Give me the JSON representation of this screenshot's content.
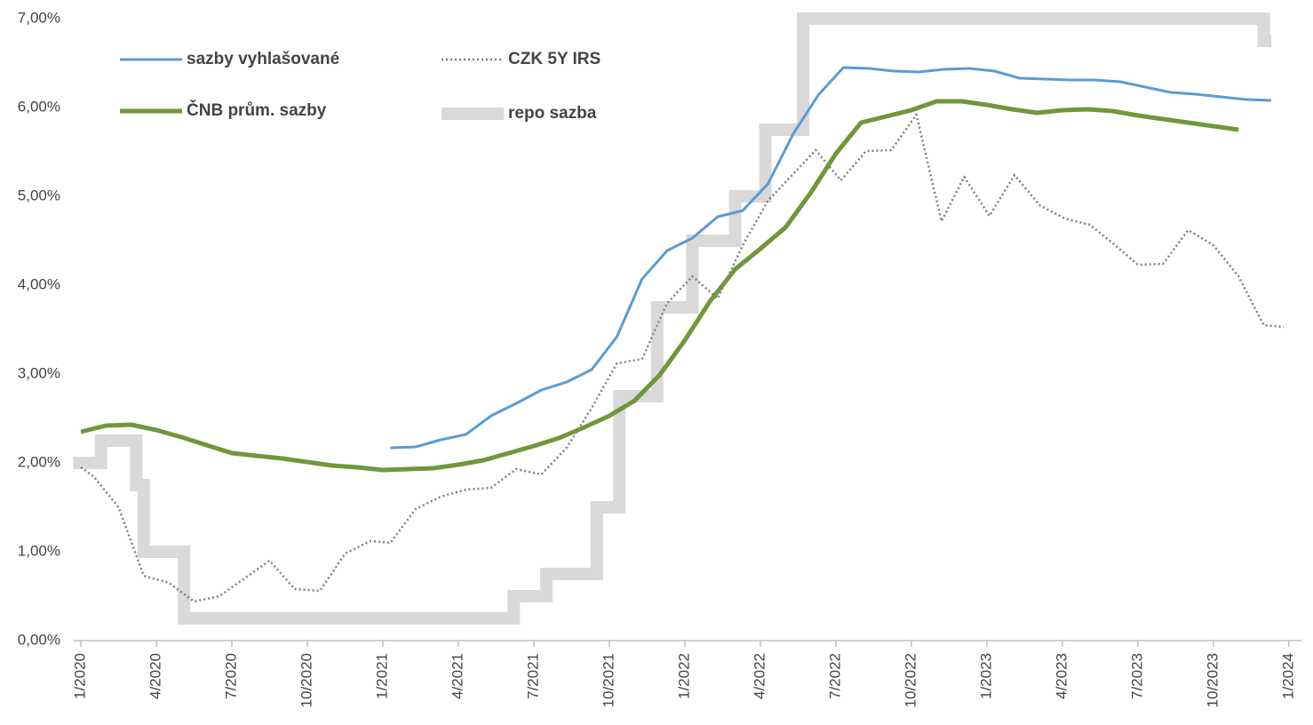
{
  "chart_data": {
    "type": "line",
    "xlim": [
      -0.3,
      48.5
    ],
    "ylim": [
      0,
      7
    ],
    "yticks": [
      {
        "value": 0,
        "label": "0,00%"
      },
      {
        "value": 1,
        "label": "1,00%"
      },
      {
        "value": 2,
        "label": "2,00%"
      },
      {
        "value": 3,
        "label": "3,00%"
      },
      {
        "value": 4,
        "label": "4,00%"
      },
      {
        "value": 5,
        "label": "5,00%"
      },
      {
        "value": 6,
        "label": "6,00%"
      },
      {
        "value": 7,
        "label": "7,00%"
      }
    ],
    "xticks": [
      {
        "value": 0,
        "label": "1/2020"
      },
      {
        "value": 3,
        "label": "4/2020"
      },
      {
        "value": 6,
        "label": "7/2020"
      },
      {
        "value": 9,
        "label": "10/2020"
      },
      {
        "value": 12,
        "label": "1/2021"
      },
      {
        "value": 15,
        "label": "4/2021"
      },
      {
        "value": 18,
        "label": "7/2021"
      },
      {
        "value": 21,
        "label": "10/2021"
      },
      {
        "value": 24,
        "label": "1/2022"
      },
      {
        "value": 27,
        "label": "4/2022"
      },
      {
        "value": 30,
        "label": "7/2022"
      },
      {
        "value": 33,
        "label": "10/2022"
      },
      {
        "value": 36,
        "label": "1/2023"
      },
      {
        "value": 39,
        "label": "4/2023"
      },
      {
        "value": 42,
        "label": "7/2023"
      },
      {
        "value": 45,
        "label": "10/2023"
      },
      {
        "value": 48,
        "label": "1/2024"
      }
    ],
    "legend": "upper left",
    "series": [
      {
        "name": "sazby vyhlašované",
        "color": "#5b9bd5",
        "style": "solid",
        "width": 3,
        "x": [
          12.3,
          13.3,
          14.3,
          15.3,
          16.3,
          17.3,
          18.3,
          19.3,
          20.3,
          21.3,
          22.3,
          23.3,
          24.3,
          25.3,
          26.3,
          27.3,
          28.3,
          29.3,
          30.3,
          31.3,
          32.3,
          33.3,
          34.3,
          35.3,
          36.3,
          37.3,
          38.3,
          39.3,
          40.3,
          41.3,
          42.3,
          43.3,
          44.3,
          45.3,
          46.3,
          47.3
        ],
        "values": [
          2.17,
          2.18,
          2.26,
          2.32,
          2.53,
          2.67,
          2.82,
          2.91,
          3.05,
          3.42,
          4.07,
          4.39,
          4.53,
          4.77,
          4.84,
          5.14,
          5.7,
          6.14,
          6.45,
          6.44,
          6.41,
          6.4,
          6.43,
          6.44,
          6.41,
          6.33,
          6.32,
          6.31,
          6.31,
          6.29,
          6.23,
          6.17,
          6.15,
          6.12,
          6.09,
          6.08
        ]
      },
      {
        "name": "CZK 5Y IRS",
        "color": "#7f7f7f",
        "style": "dotted",
        "width": 2.5,
        "x": [
          0,
          0.5,
          1.5,
          2.5,
          3.5,
          4.5,
          5.5,
          6.5,
          7.5,
          8.5,
          9.5,
          10.5,
          11.5,
          12.3,
          13.3,
          14.3,
          15.3,
          16.3,
          17.3,
          18.3,
          19.3,
          20.3,
          21.3,
          22.3,
          23.3,
          24.3,
          25.3,
          26.3,
          27.3,
          28.3,
          29.2,
          30.2,
          31.2,
          32.2,
          33.2,
          34.2,
          35.1,
          36.1,
          37.1,
          38.1,
          39.1,
          40.1,
          41.1,
          42.0,
          43.0,
          44.0,
          45.0,
          46.0,
          47.0,
          47.8
        ],
        "values": [
          1.95,
          1.85,
          1.5,
          0.73,
          0.65,
          0.44,
          0.5,
          0.7,
          0.9,
          0.58,
          0.56,
          0.98,
          1.12,
          1.1,
          1.48,
          1.62,
          1.7,
          1.72,
          1.93,
          1.87,
          2.17,
          2.62,
          3.12,
          3.17,
          3.8,
          4.1,
          3.85,
          4.45,
          4.95,
          5.25,
          5.52,
          5.18,
          5.51,
          5.52,
          5.92,
          4.72,
          5.22,
          4.78,
          5.24,
          4.9,
          4.75,
          4.68,
          4.45,
          4.23,
          4.24,
          4.62,
          4.45,
          4.1,
          3.55,
          3.53
        ]
      },
      {
        "name": "ČNB prům. sazby",
        "color": "#70973a",
        "style": "solid",
        "width": 5,
        "x": [
          0,
          1,
          2,
          3,
          4,
          5,
          6,
          7,
          8,
          9,
          10,
          11,
          12,
          13,
          14,
          15,
          16,
          17,
          18,
          19,
          20,
          21,
          22,
          23,
          24,
          25,
          26,
          27,
          28,
          29,
          30,
          31,
          32,
          33,
          34,
          35,
          36,
          37,
          38,
          39,
          40,
          41,
          42,
          43,
          44,
          45,
          46
        ],
        "values": [
          2.35,
          2.42,
          2.43,
          2.37,
          2.29,
          2.2,
          2.11,
          2.08,
          2.05,
          2.01,
          1.97,
          1.95,
          1.92,
          1.93,
          1.94,
          1.98,
          2.03,
          2.11,
          2.19,
          2.28,
          2.4,
          2.53,
          2.7,
          2.99,
          3.38,
          3.82,
          4.18,
          4.41,
          4.65,
          5.04,
          5.48,
          5.83,
          5.9,
          5.97,
          6.07,
          6.07,
          6.03,
          5.98,
          5.94,
          5.97,
          5.98,
          5.96,
          5.91,
          5.87,
          5.83,
          5.79,
          5.75
        ]
      },
      {
        "name": "repo sazba",
        "color": "#d9d9d9",
        "style": "step",
        "width": 14,
        "x": [
          -0.3,
          0.8,
          2.2,
          2.5,
          4.1,
          17.2,
          18.5,
          20.5,
          21.4,
          22.9,
          24.3,
          26.0,
          27.2,
          28.7,
          47.0,
          47.3
        ],
        "values": [
          2.0,
          2.25,
          1.75,
          1.0,
          0.25,
          0.5,
          0.75,
          1.5,
          2.75,
          3.75,
          4.5,
          5.0,
          5.75,
          7.0,
          6.75,
          6.75
        ]
      }
    ]
  }
}
